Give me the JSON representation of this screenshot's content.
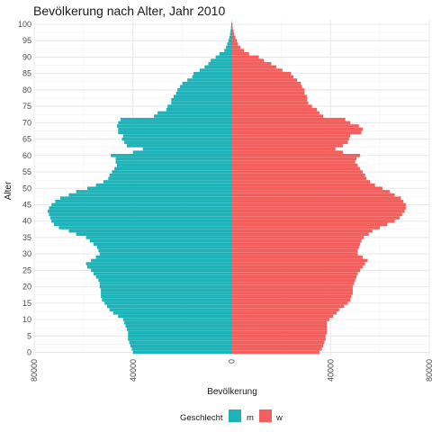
{
  "chart_data": {
    "type": "bar",
    "orientation": "horizontal",
    "title": "Bevölkerung nach Alter, Jahr 2010",
    "xlabel": "Bevölkerung",
    "ylabel": "Alter",
    "xlim": [
      -80000,
      80000
    ],
    "ylim": [
      0,
      100
    ],
    "x_ticks": [
      -80000,
      -40000,
      0,
      40000,
      80000
    ],
    "x_tick_labels": [
      "80000",
      "40000",
      "0",
      "40000",
      "80000"
    ],
    "y_ticks": [
      0,
      5,
      10,
      15,
      20,
      25,
      30,
      35,
      40,
      45,
      50,
      55,
      60,
      65,
      70,
      75,
      80,
      85,
      90,
      95,
      100
    ],
    "grid": true,
    "legend": {
      "title": "Geschlecht",
      "placement": "bottom",
      "entries": [
        {
          "label": "m",
          "color": "#1eb3b8"
        },
        {
          "label": "w",
          "color": "#f25f5c"
        }
      ]
    },
    "ages": [
      0,
      1,
      2,
      3,
      4,
      5,
      6,
      7,
      8,
      9,
      10,
      11,
      12,
      13,
      14,
      15,
      16,
      17,
      18,
      19,
      20,
      21,
      22,
      23,
      24,
      25,
      26,
      27,
      28,
      29,
      30,
      31,
      32,
      33,
      34,
      35,
      36,
      37,
      38,
      39,
      40,
      41,
      42,
      43,
      44,
      45,
      46,
      47,
      48,
      49,
      50,
      51,
      52,
      53,
      54,
      55,
      56,
      57,
      58,
      59,
      60,
      61,
      62,
      63,
      64,
      65,
      66,
      67,
      68,
      69,
      70,
      71,
      72,
      73,
      74,
      75,
      76,
      77,
      78,
      79,
      80,
      81,
      82,
      83,
      84,
      85,
      86,
      87,
      88,
      89,
      90,
      91,
      92,
      93,
      94,
      95,
      96,
      97,
      98,
      99,
      100
    ],
    "series": [
      {
        "name": "m",
        "color": "#1eb3b8",
        "values": [
          40000,
          40500,
          41000,
          41500,
          42000,
          42000,
          42000,
          42500,
          43000,
          43500,
          44000,
          46000,
          48000,
          49500,
          50500,
          51500,
          52500,
          53000,
          53000,
          53000,
          53500,
          53500,
          54000,
          55000,
          56000,
          57000,
          58500,
          59000,
          57000,
          55000,
          53500,
          54000,
          54500,
          56000,
          57500,
          59000,
          63000,
          66000,
          70000,
          72000,
          73000,
          73500,
          74000,
          74500,
          74000,
          73000,
          71500,
          69500,
          66000,
          63000,
          58500,
          55000,
          52000,
          50000,
          49500,
          48500,
          47500,
          46500,
          47000,
          47000,
          49000,
          40000,
          36000,
          42500,
          43500,
          44500,
          44000,
          46000,
          46000,
          46500,
          46000,
          45000,
          31500,
          30000,
          26500,
          26000,
          24500,
          24500,
          23500,
          22500,
          22000,
          21000,
          20000,
          18000,
          16000,
          15500,
          13000,
          11000,
          9500,
          8500,
          6500,
          5000,
          3000,
          2300,
          1800,
          1400,
          1000,
          700,
          500,
          300,
          200
        ]
      },
      {
        "name": "w",
        "color": "#f25f5c",
        "values": [
          35500,
          36500,
          37000,
          37500,
          38000,
          38000,
          38500,
          38500,
          38500,
          38500,
          39500,
          41000,
          42500,
          43500,
          45500,
          47000,
          48000,
          48500,
          49000,
          49000,
          49000,
          49500,
          50000,
          50500,
          51000,
          52000,
          53000,
          54000,
          55000,
          53000,
          51000,
          51000,
          51500,
          52000,
          52500,
          53500,
          55500,
          57000,
          60000,
          63000,
          66000,
          68000,
          69000,
          70000,
          70500,
          70500,
          69500,
          68500,
          66000,
          64000,
          61000,
          58000,
          56000,
          54500,
          54000,
          53000,
          52000,
          51000,
          50000,
          50500,
          52000,
          45000,
          42000,
          45000,
          47000,
          47500,
          48000,
          52500,
          53000,
          51500,
          48000,
          46000,
          37000,
          35500,
          34500,
          32500,
          31000,
          30500,
          30500,
          29500,
          29500,
          28500,
          28000,
          26500,
          25000,
          24000,
          20500,
          18000,
          16000,
          13000,
          11000,
          7000,
          5000,
          3500,
          2500,
          2000,
          1500,
          1000,
          700,
          400,
          300
        ]
      }
    ]
  }
}
